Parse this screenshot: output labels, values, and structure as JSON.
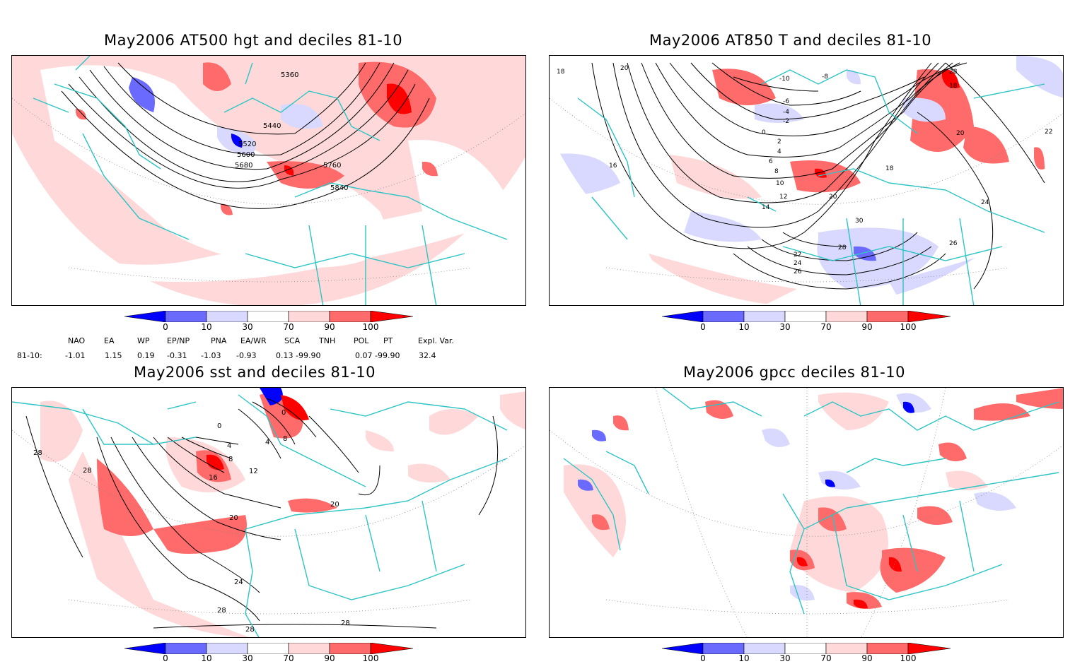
{
  "panels": {
    "top_left": {
      "title": "May2006 AT500 hgt and deciles 81-10",
      "contour_labels": [
        "5360",
        "5440",
        "5520",
        "5600",
        "5680",
        "5760",
        "5840"
      ]
    },
    "top_right": {
      "title": "May2006 AT850 T and deciles 81-10",
      "contour_labels": [
        "18",
        "20",
        "-10",
        "-8",
        "-6",
        "-4",
        "-2",
        "0",
        "2",
        "4",
        "6",
        "8",
        "10",
        "12",
        "14",
        "16",
        "18",
        "20",
        "22",
        "24",
        "26",
        "28",
        "30",
        "28",
        "18",
        "20",
        "22",
        "24",
        "26",
        "28",
        "14",
        "16",
        "20",
        "24",
        "20",
        "20",
        "18",
        "28"
      ]
    },
    "bottom_left": {
      "title": "May2006 sst and deciles 81-10",
      "contour_labels": [
        "28",
        "28",
        "0",
        "4",
        "8",
        "12",
        "16",
        "0",
        "4",
        "8",
        "20",
        "24",
        "28",
        "28",
        "28",
        "20"
      ]
    },
    "bottom_right": {
      "title": "May2006 gpcc deciles 81-10"
    }
  },
  "colorbar": {
    "tick_labels": [
      "0",
      "10",
      "30",
      "70",
      "90",
      "100"
    ],
    "colors": [
      "#0000ff",
      "#6a6aff",
      "#d9d9ff",
      "#ffffff",
      "#ffd9d9",
      "#ff6a6a",
      "#ff0000"
    ]
  },
  "indices": {
    "headers": [
      "NAO",
      "EA",
      "WP",
      "EP/NP",
      "PNA",
      "EA/WR",
      "SCA",
      "TNH",
      "POL",
      "PT",
      "Expl. Var."
    ],
    "row_label": "81-10:",
    "values": [
      "-1.01",
      "1.15",
      "0.19",
      "-0.31",
      "-1.03",
      "-0.93",
      "0.13",
      "-99.90",
      "0.07",
      "-99.90",
      "32.4"
    ]
  },
  "styles": {
    "coast_color": "#2ec4c4",
    "warm_light": "#ffd9d9",
    "warm_mid": "#ff6a6a",
    "warm_strong": "#ff0000",
    "cold_light": "#d9d9ff",
    "cold_mid": "#6a6aff",
    "cold_strong": "#0000ff"
  }
}
